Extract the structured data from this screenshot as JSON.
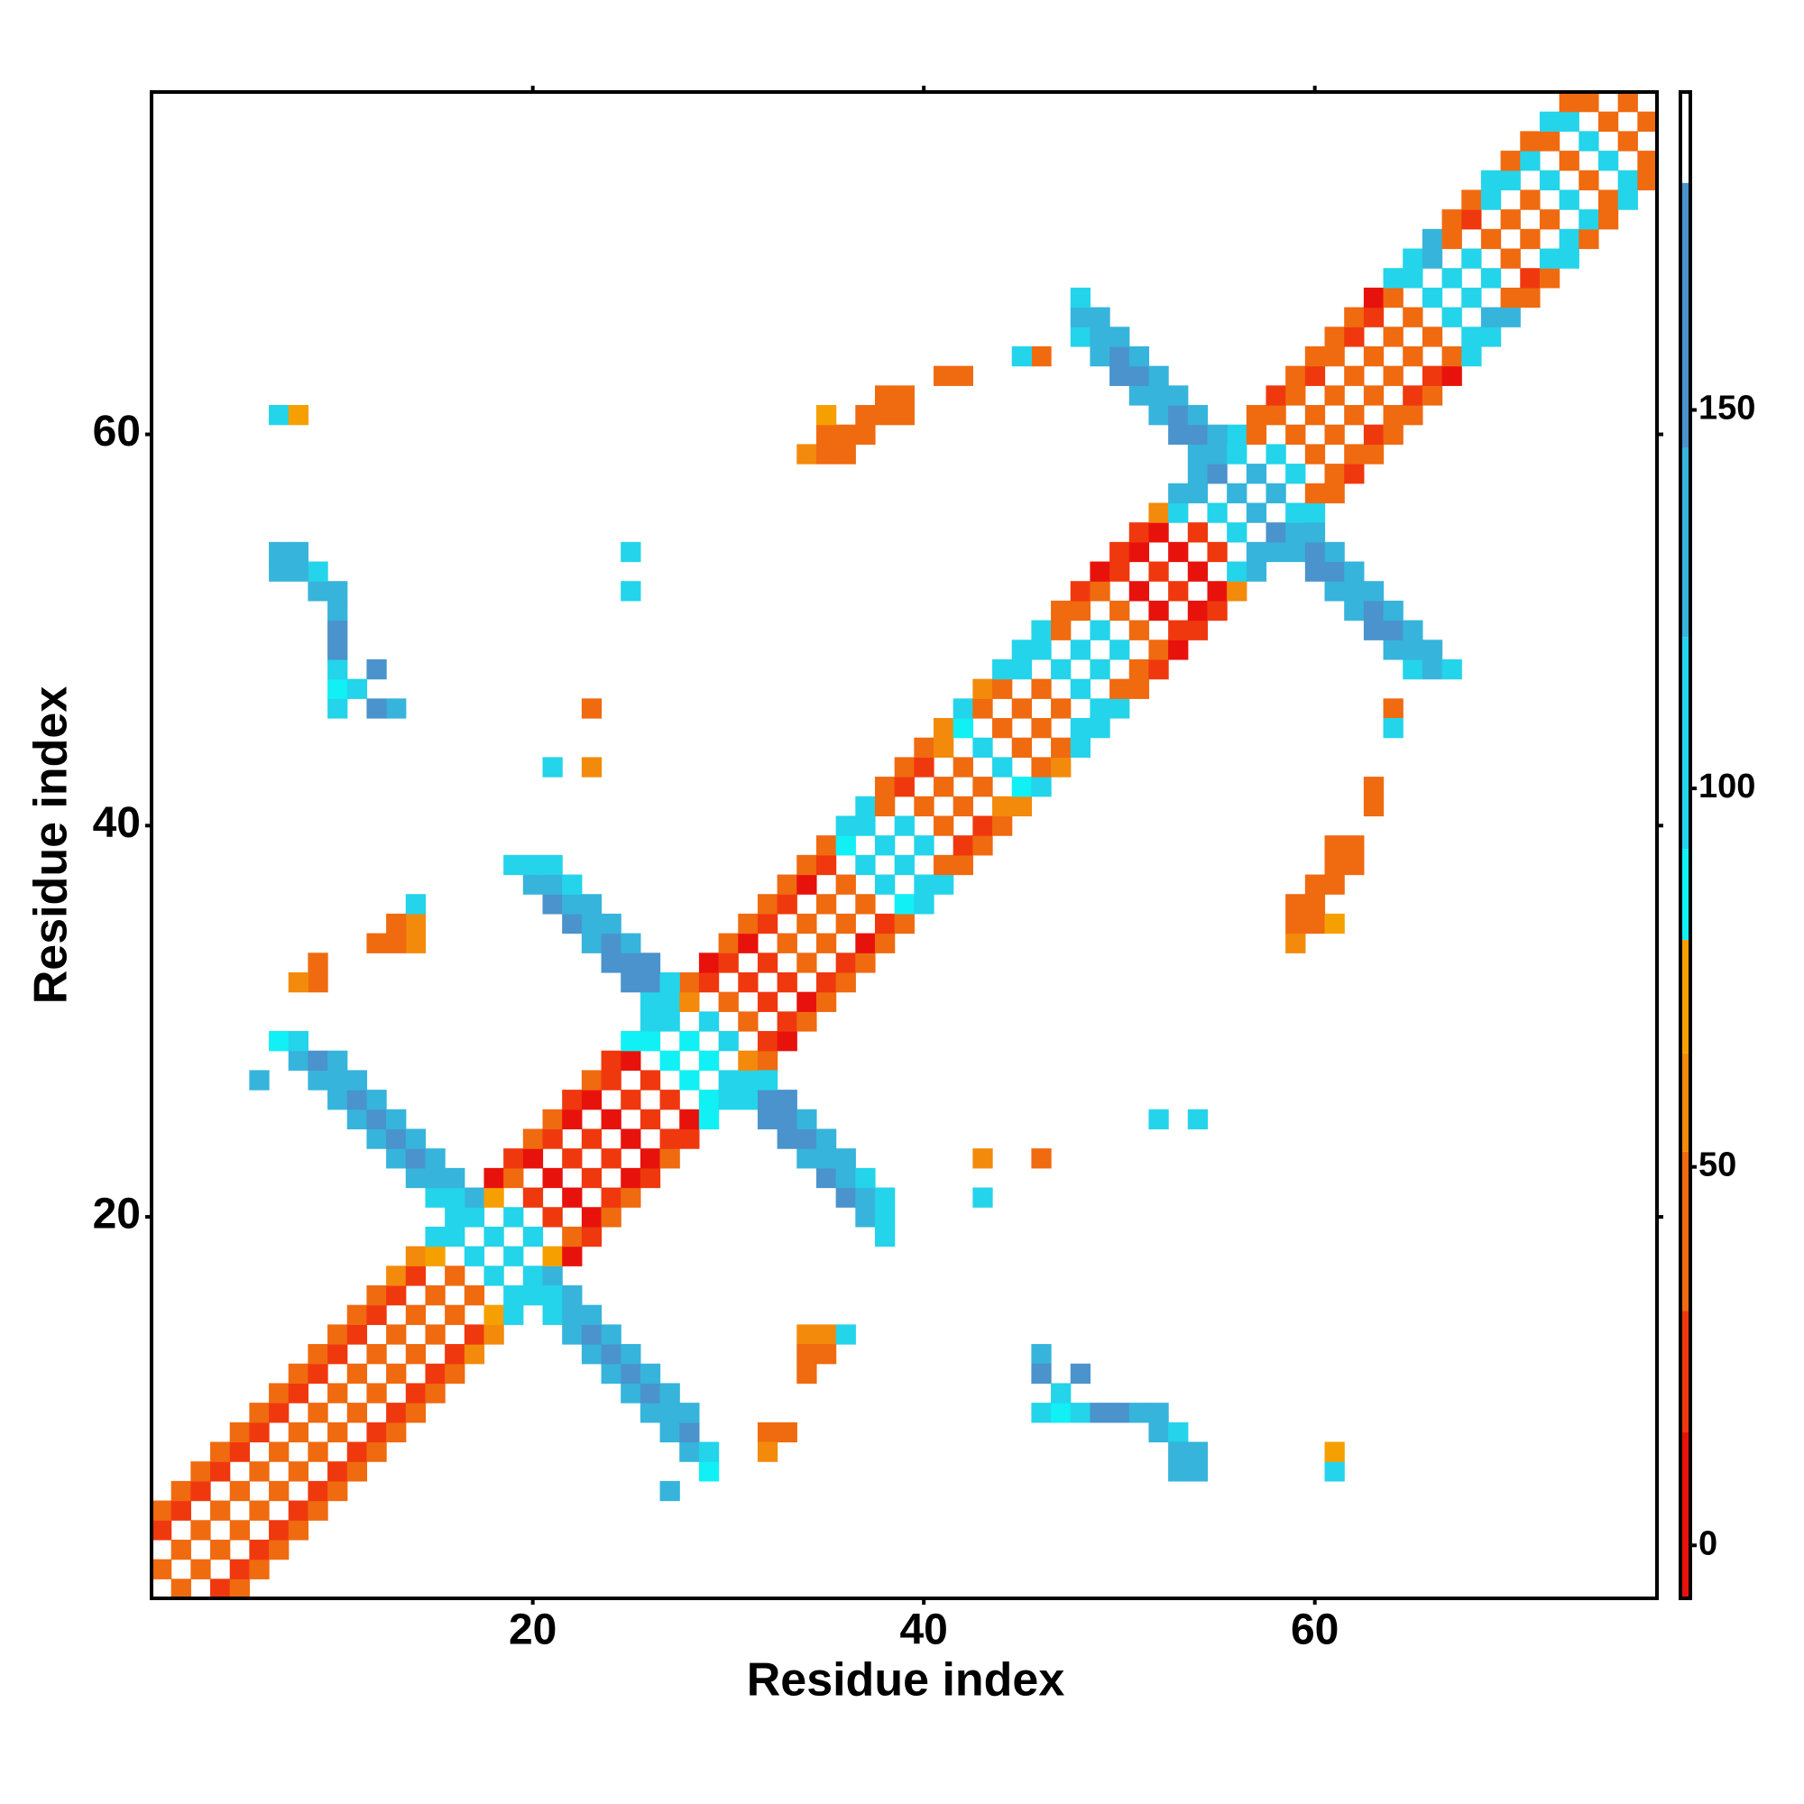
{
  "chart_data": {
    "type": "heatmap",
    "xlabel": "Residue index",
    "ylabel": "Residue index",
    "xlim": [
      0.5,
      77.5
    ],
    "ylim": [
      0.5,
      77.5
    ],
    "xticks": [
      20,
      40,
      60
    ],
    "yticks": [
      20,
      40,
      60
    ],
    "symmetric": true,
    "colorbar": {
      "lim": [
        -7,
        192
      ],
      "ticks": [
        0,
        50,
        100,
        150
      ],
      "bins": [
        {
          "value": -7,
          "color": "#e8120c"
        },
        {
          "value": 15,
          "color": "#f0380e"
        },
        {
          "value": 31,
          "color": "#f06a10"
        },
        {
          "value": 52,
          "color": "#f38a0c"
        },
        {
          "value": 65,
          "color": "#f5a000"
        },
        {
          "value": 80,
          "color": "#11f0f5"
        },
        {
          "value": 92,
          "color": "#24d4ea"
        },
        {
          "value": 120,
          "color": "#36b4dc"
        },
        {
          "value": 145,
          "color": "#4a93cc"
        },
        {
          "value": 180,
          "color": "#ffffff"
        }
      ]
    },
    "cells": [
      [
        2,
        1,
        45
      ],
      [
        4,
        1,
        20
      ],
      [
        5,
        1,
        40
      ],
      [
        3,
        2,
        42
      ],
      [
        5,
        2,
        18
      ],
      [
        6,
        2,
        45
      ],
      [
        4,
        3,
        45
      ],
      [
        6,
        3,
        20
      ],
      [
        7,
        3,
        42
      ],
      [
        5,
        4,
        40
      ],
      [
        7,
        4,
        15
      ],
      [
        8,
        4,
        45
      ],
      [
        6,
        5,
        45
      ],
      [
        8,
        5,
        20
      ],
      [
        9,
        5,
        42
      ],
      [
        7,
        6,
        42
      ],
      [
        9,
        6,
        18
      ],
      [
        10,
        6,
        45
      ],
      [
        8,
        7,
        45
      ],
      [
        10,
        7,
        22
      ],
      [
        11,
        7,
        40
      ],
      [
        9,
        8,
        40
      ],
      [
        11,
        8,
        20
      ],
      [
        12,
        8,
        45
      ],
      [
        10,
        9,
        45
      ],
      [
        12,
        9,
        18
      ],
      [
        13,
        9,
        42
      ],
      [
        11,
        10,
        42
      ],
      [
        13,
        10,
        20
      ],
      [
        14,
        10,
        45
      ],
      [
        12,
        11,
        45
      ],
      [
        14,
        11,
        15
      ],
      [
        15,
        11,
        40
      ],
      [
        13,
        12,
        40
      ],
      [
        15,
        12,
        20
      ],
      [
        16,
        12,
        45
      ],
      [
        14,
        13,
        45
      ],
      [
        16,
        13,
        18
      ],
      [
        17,
        13,
        55
      ],
      [
        15,
        14,
        42
      ],
      [
        17,
        14,
        20
      ],
      [
        18,
        14,
        60
      ],
      [
        16,
        15,
        45
      ],
      [
        18,
        15,
        70
      ],
      [
        19,
        15,
        105
      ],
      [
        17,
        16,
        50
      ],
      [
        19,
        16,
        110
      ],
      [
        20,
        16,
        115
      ],
      [
        18,
        17,
        95
      ],
      [
        20,
        17,
        110
      ],
      [
        21,
        17,
        120
      ],
      [
        19,
        18,
        100
      ],
      [
        21,
        18,
        75
      ],
      [
        22,
        18,
        10
      ],
      [
        20,
        19,
        110
      ],
      [
        22,
        19,
        40
      ],
      [
        23,
        19,
        15
      ],
      [
        21,
        20,
        15
      ],
      [
        23,
        20,
        10
      ],
      [
        24,
        20,
        40
      ],
      [
        22,
        21,
        10
      ],
      [
        24,
        21,
        15
      ],
      [
        25,
        21,
        45
      ],
      [
        23,
        22,
        20
      ],
      [
        25,
        22,
        8
      ],
      [
        26,
        22,
        15
      ],
      [
        24,
        23,
        15
      ],
      [
        26,
        23,
        10
      ],
      [
        27,
        23,
        45
      ],
      [
        25,
        24,
        10
      ],
      [
        27,
        24,
        15
      ],
      [
        28,
        24,
        20
      ],
      [
        26,
        25,
        15
      ],
      [
        28,
        25,
        10
      ],
      [
        29,
        25,
        90
      ],
      [
        27,
        26,
        20
      ],
      [
        29,
        26,
        85
      ],
      [
        30,
        26,
        100
      ],
      [
        28,
        27,
        90
      ],
      [
        30,
        27,
        105
      ],
      [
        31,
        27,
        110
      ],
      [
        29,
        28,
        85
      ],
      [
        31,
        28,
        60
      ],
      [
        32,
        28,
        45
      ],
      [
        30,
        29,
        95
      ],
      [
        32,
        29,
        20
      ],
      [
        33,
        29,
        10
      ],
      [
        31,
        30,
        45
      ],
      [
        33,
        30,
        15
      ],
      [
        34,
        30,
        40
      ],
      [
        32,
        31,
        30
      ],
      [
        34,
        31,
        10
      ],
      [
        35,
        31,
        45
      ],
      [
        33,
        32,
        15
      ],
      [
        35,
        32,
        20
      ],
      [
        36,
        32,
        40
      ],
      [
        34,
        33,
        45
      ],
      [
        36,
        33,
        15
      ],
      [
        37,
        33,
        45
      ],
      [
        35,
        34,
        40
      ],
      [
        37,
        34,
        10
      ],
      [
        38,
        34,
        45
      ],
      [
        36,
        35,
        45
      ],
      [
        38,
        35,
        20
      ],
      [
        39,
        35,
        50
      ],
      [
        37,
        36,
        42
      ],
      [
        39,
        36,
        90
      ],
      [
        40,
        36,
        95
      ],
      [
        38,
        37,
        95
      ],
      [
        40,
        37,
        100
      ],
      [
        41,
        37,
        95
      ],
      [
        39,
        38,
        100
      ],
      [
        41,
        38,
        45
      ],
      [
        42,
        38,
        40
      ],
      [
        40,
        39,
        105
      ],
      [
        42,
        39,
        20
      ],
      [
        43,
        39,
        50
      ],
      [
        41,
        40,
        45
      ],
      [
        43,
        40,
        15
      ],
      [
        44,
        40,
        40
      ],
      [
        42,
        41,
        40
      ],
      [
        44,
        41,
        60
      ],
      [
        45,
        41,
        55
      ],
      [
        43,
        42,
        45
      ],
      [
        45,
        42,
        90
      ],
      [
        46,
        42,
        100
      ],
      [
        44,
        43,
        95
      ],
      [
        46,
        43,
        40
      ],
      [
        47,
        43,
        55
      ],
      [
        45,
        44,
        40
      ],
      [
        47,
        44,
        45
      ],
      [
        48,
        44,
        95
      ],
      [
        46,
        45,
        45
      ],
      [
        48,
        45,
        100
      ],
      [
        49,
        45,
        110
      ],
      [
        47,
        46,
        50
      ],
      [
        49,
        46,
        105
      ],
      [
        50,
        46,
        110
      ],
      [
        48,
        47,
        100
      ],
      [
        50,
        47,
        45
      ],
      [
        51,
        47,
        40
      ],
      [
        49,
        48,
        110
      ],
      [
        51,
        48,
        40
      ],
      [
        52,
        48,
        20
      ],
      [
        50,
        49,
        95
      ],
      [
        52,
        49,
        45
      ],
      [
        53,
        49,
        10
      ],
      [
        51,
        50,
        45
      ],
      [
        53,
        50,
        15
      ],
      [
        54,
        50,
        20
      ],
      [
        52,
        51,
        10
      ],
      [
        54,
        51,
        8
      ],
      [
        55,
        51,
        15
      ],
      [
        53,
        52,
        15
      ],
      [
        55,
        52,
        10
      ],
      [
        56,
        52,
        55
      ],
      [
        54,
        53,
        10
      ],
      [
        56,
        53,
        100
      ],
      [
        57,
        53,
        120
      ],
      [
        55,
        54,
        20
      ],
      [
        57,
        54,
        130
      ],
      [
        58,
        54,
        140
      ],
      [
        56,
        55,
        95
      ],
      [
        58,
        55,
        145
      ],
      [
        59,
        55,
        120
      ],
      [
        57,
        56,
        140
      ],
      [
        59,
        56,
        110
      ],
      [
        60,
        56,
        95
      ],
      [
        58,
        57,
        120
      ],
      [
        60,
        57,
        40
      ],
      [
        61,
        57,
        45
      ],
      [
        59,
        58,
        100
      ],
      [
        61,
        58,
        45
      ],
      [
        62,
        58,
        20
      ],
      [
        60,
        59,
        45
      ],
      [
        62,
        59,
        40
      ],
      [
        63,
        59,
        45
      ],
      [
        61,
        60,
        40
      ],
      [
        63,
        60,
        20
      ],
      [
        64,
        60,
        45
      ],
      [
        62,
        61,
        45
      ],
      [
        64,
        61,
        40
      ],
      [
        65,
        61,
        45
      ],
      [
        63,
        62,
        42
      ],
      [
        65,
        62,
        15
      ],
      [
        66,
        62,
        40
      ],
      [
        64,
        63,
        45
      ],
      [
        66,
        63,
        20
      ],
      [
        67,
        63,
        10
      ],
      [
        65,
        64,
        40
      ],
      [
        67,
        64,
        45
      ],
      [
        68,
        64,
        100
      ],
      [
        66,
        65,
        45
      ],
      [
        68,
        65,
        110
      ],
      [
        69,
        65,
        115
      ],
      [
        67,
        66,
        100
      ],
      [
        69,
        66,
        120
      ],
      [
        70,
        66,
        125
      ],
      [
        68,
        67,
        110
      ],
      [
        70,
        67,
        40
      ],
      [
        71,
        67,
        45
      ],
      [
        69,
        68,
        105
      ],
      [
        71,
        68,
        20
      ],
      [
        72,
        68,
        40
      ],
      [
        70,
        69,
        45
      ],
      [
        72,
        69,
        100
      ],
      [
        73,
        69,
        110
      ],
      [
        71,
        70,
        40
      ],
      [
        73,
        70,
        105
      ],
      [
        74,
        70,
        45
      ],
      [
        72,
        71,
        45
      ],
      [
        74,
        71,
        110
      ],
      [
        75,
        71,
        40
      ],
      [
        73,
        72,
        100
      ],
      [
        75,
        72,
        45
      ],
      [
        76,
        72,
        100
      ],
      [
        74,
        73,
        45
      ],
      [
        76,
        73,
        105
      ],
      [
        77,
        73,
        40
      ],
      [
        75,
        74,
        110
      ],
      [
        77,
        74,
        45
      ],
      [
        76,
        75,
        40
      ],
      [
        77,
        76,
        45
      ],
      [
        21,
        15,
        110
      ],
      [
        21,
        16,
        115
      ],
      [
        22,
        14,
        120
      ],
      [
        22,
        15,
        140
      ],
      [
        22,
        16,
        125
      ],
      [
        23,
        13,
        125
      ],
      [
        23,
        14,
        150
      ],
      [
        23,
        15,
        130
      ],
      [
        24,
        12,
        130
      ],
      [
        24,
        13,
        155
      ],
      [
        24,
        14,
        140
      ],
      [
        25,
        11,
        125
      ],
      [
        25,
        12,
        150
      ],
      [
        25,
        13,
        135
      ],
      [
        26,
        10,
        120
      ],
      [
        26,
        11,
        150
      ],
      [
        26,
        12,
        130
      ],
      [
        27,
        9,
        125
      ],
      [
        27,
        10,
        140
      ],
      [
        27,
        11,
        120
      ],
      [
        28,
        8,
        130
      ],
      [
        28,
        9,
        150
      ],
      [
        28,
        10,
        125
      ],
      [
        29,
        7,
        90
      ],
      [
        29,
        8,
        95
      ],
      [
        27,
        6,
        140
      ],
      [
        31,
        26,
        95
      ],
      [
        32,
        25,
        150
      ],
      [
        32,
        26,
        150
      ],
      [
        32,
        27,
        95
      ],
      [
        33,
        24,
        145
      ],
      [
        33,
        25,
        155
      ],
      [
        33,
        26,
        150
      ],
      [
        34,
        23,
        140
      ],
      [
        34,
        24,
        150
      ],
      [
        34,
        25,
        130
      ],
      [
        35,
        22,
        145
      ],
      [
        35,
        23,
        125
      ],
      [
        35,
        24,
        120
      ],
      [
        36,
        21,
        150
      ],
      [
        36,
        22,
        130
      ],
      [
        36,
        23,
        120
      ],
      [
        37,
        20,
        125
      ],
      [
        37,
        21,
        120
      ],
      [
        37,
        22,
        115
      ],
      [
        38,
        20,
        110
      ],
      [
        38,
        21,
        105
      ],
      [
        38,
        19,
        95
      ],
      [
        59,
        54,
        140
      ],
      [
        60,
        53,
        145
      ],
      [
        60,
        54,
        150
      ],
      [
        60,
        55,
        130
      ],
      [
        61,
        52,
        125
      ],
      [
        61,
        53,
        150
      ],
      [
        61,
        54,
        120
      ],
      [
        62,
        51,
        120
      ],
      [
        62,
        52,
        130
      ],
      [
        62,
        53,
        125
      ],
      [
        63,
        50,
        150
      ],
      [
        63,
        51,
        145
      ],
      [
        63,
        52,
        120
      ],
      [
        64,
        49,
        125
      ],
      [
        64,
        50,
        150
      ],
      [
        64,
        51,
        130
      ],
      [
        65,
        48,
        115
      ],
      [
        65,
        49,
        135
      ],
      [
        65,
        50,
        125
      ],
      [
        66,
        48,
        120
      ],
      [
        66,
        49,
        130
      ],
      [
        67,
        48,
        115
      ],
      [
        46,
        13,
        120
      ],
      [
        46,
        12,
        150
      ],
      [
        48,
        12,
        150
      ],
      [
        46,
        10,
        95
      ],
      [
        47,
        10,
        90
      ],
      [
        47,
        11,
        95
      ],
      [
        48,
        10,
        100
      ],
      [
        49,
        10,
        150
      ],
      [
        50,
        10,
        150
      ],
      [
        51,
        10,
        120
      ],
      [
        52,
        10,
        125
      ],
      [
        52,
        9,
        130
      ],
      [
        53,
        9,
        115
      ],
      [
        53,
        8,
        120
      ],
      [
        54,
        8,
        125
      ],
      [
        54,
        7,
        120
      ],
      [
        53,
        7,
        125
      ],
      [
        59,
        34,
        55
      ],
      [
        59,
        35,
        45
      ],
      [
        60,
        35,
        45
      ],
      [
        61,
        35,
        65
      ],
      [
        59,
        36,
        48
      ],
      [
        60,
        36,
        45
      ],
      [
        60,
        37,
        40
      ],
      [
        61,
        37,
        40
      ],
      [
        61,
        38,
        45
      ],
      [
        62,
        38,
        45
      ],
      [
        62,
        39,
        42
      ],
      [
        61,
        39,
        40
      ],
      [
        63,
        41,
        40
      ],
      [
        64,
        46,
        50
      ],
      [
        64,
        45,
        95
      ],
      [
        61,
        7,
        95
      ],
      [
        61,
        8,
        65
      ],
      [
        34,
        14,
        60
      ],
      [
        35,
        14,
        55
      ],
      [
        34,
        13,
        50
      ],
      [
        35,
        13,
        45
      ],
      [
        34,
        12,
        45
      ],
      [
        36,
        14,
        95
      ],
      [
        32,
        9,
        45
      ],
      [
        33,
        9,
        48
      ],
      [
        32,
        8,
        55
      ],
      [
        63,
        42,
        45
      ],
      [
        52,
        25,
        95
      ],
      [
        54,
        25,
        95
      ],
      [
        43,
        21,
        95
      ],
      [
        43,
        23,
        55
      ],
      [
        46,
        23,
        50
      ]
    ]
  }
}
